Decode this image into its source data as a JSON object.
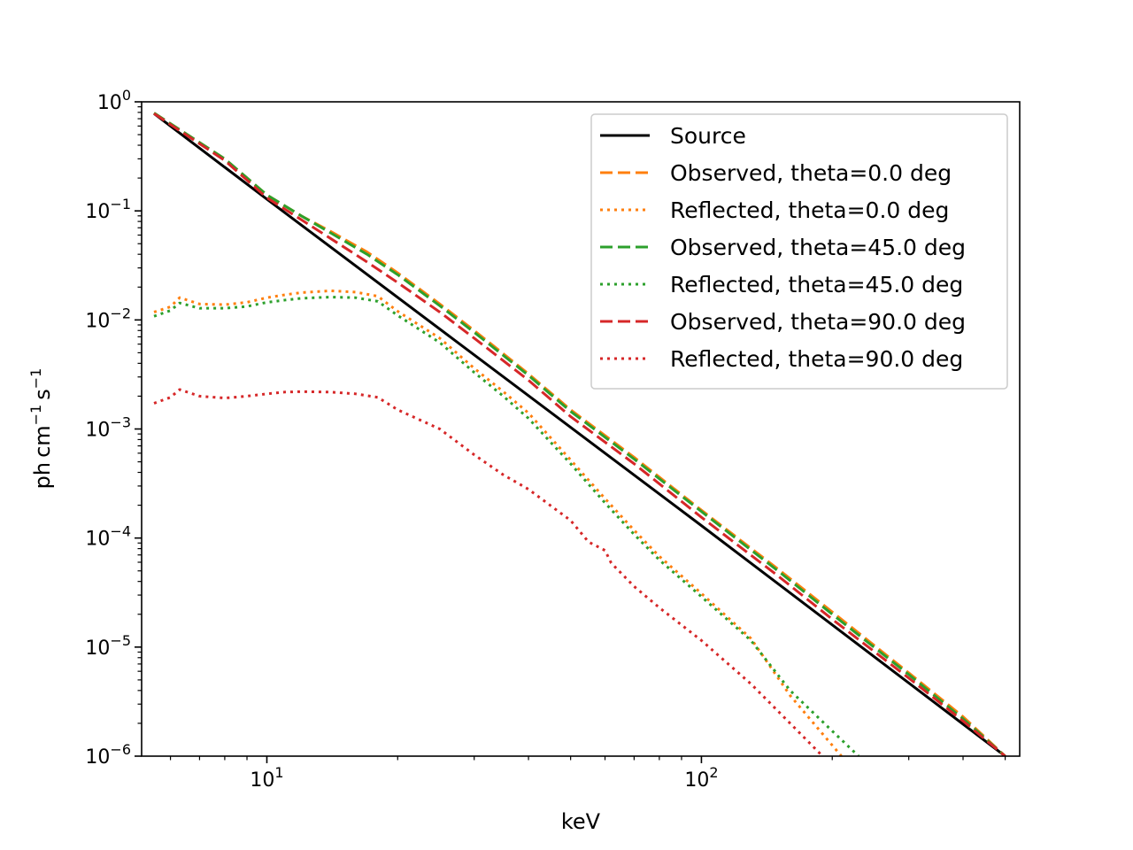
{
  "chart_data": {
    "type": "line",
    "title": "",
    "xlabel": "keV",
    "ylabel": "ph cm^-1 s^-1",
    "xscale": "log",
    "yscale": "log",
    "xlim": [
      5.15,
      540
    ],
    "ylim": [
      1e-06,
      1
    ],
    "x_ticks": [
      {
        "value": 10,
        "base": "10",
        "exp": "1"
      },
      {
        "value": 100,
        "base": "10",
        "exp": "2"
      }
    ],
    "y_ticks": [
      {
        "value": 1,
        "base": "10",
        "exp": "0"
      },
      {
        "value": 0.1,
        "base": "10",
        "exp": "−1"
      },
      {
        "value": 0.01,
        "base": "10",
        "exp": "−2"
      },
      {
        "value": 0.001,
        "base": "10",
        "exp": "−3"
      },
      {
        "value": 0.0001,
        "base": "10",
        "exp": "−4"
      },
      {
        "value": 1e-05,
        "base": "10",
        "exp": "−5"
      },
      {
        "value": 1e-06,
        "base": "10",
        "exp": "−6"
      }
    ],
    "legend_position": "top-right",
    "series": [
      {
        "name": "Source",
        "color": "#000000",
        "style": "solid",
        "points": [
          [
            5.5,
            0.78
          ],
          [
            10,
            0.128
          ],
          [
            100,
            0.00013
          ],
          [
            500,
            1e-06
          ]
        ]
      },
      {
        "name": "Observed, theta=0.0 deg",
        "color": "#ff7f0e",
        "style": "dashed",
        "points": [
          [
            5.5,
            0.79
          ],
          [
            8,
            0.3
          ],
          [
            10,
            0.14
          ],
          [
            12,
            0.09
          ],
          [
            14,
            0.065
          ],
          [
            17,
            0.042
          ],
          [
            20,
            0.027
          ],
          [
            25,
            0.014
          ],
          [
            30,
            0.008
          ],
          [
            40,
            0.0032
          ],
          [
            50,
            0.0015
          ],
          [
            70,
            0.00055
          ],
          [
            100,
            0.00018
          ],
          [
            150,
            5.2e-05
          ],
          [
            200,
            2.1e-05
          ],
          [
            300,
            5.8e-06
          ],
          [
            400,
            2.3e-06
          ],
          [
            500,
            1e-06
          ]
        ]
      },
      {
        "name": "Reflected, theta=0.0 deg",
        "color": "#ff7f0e",
        "style": "dotted",
        "points": [
          [
            5.5,
            0.0118
          ],
          [
            6,
            0.0132
          ],
          [
            6.3,
            0.016
          ],
          [
            7,
            0.014
          ],
          [
            8,
            0.0138
          ],
          [
            9,
            0.0145
          ],
          [
            10,
            0.016
          ],
          [
            11,
            0.017
          ],
          [
            12,
            0.0178
          ],
          [
            14,
            0.0185
          ],
          [
            16,
            0.018
          ],
          [
            18,
            0.0165
          ],
          [
            20,
            0.012
          ],
          [
            25,
            0.0068
          ],
          [
            30,
            0.0036
          ],
          [
            35,
            0.0022
          ],
          [
            40,
            0.0014
          ],
          [
            50,
            0.00052
          ],
          [
            60,
            0.00023
          ],
          [
            70,
            0.000118
          ],
          [
            80,
            6.8e-05
          ],
          [
            100,
            3.1e-05
          ],
          [
            130,
            1.2e-05
          ],
          [
            160,
            3.6e-06
          ],
          [
            190,
            1.6e-06
          ],
          [
            210,
            1e-06
          ]
        ]
      },
      {
        "name": "Observed, theta=45.0 deg",
        "color": "#2ca02c",
        "style": "dashed",
        "points": [
          [
            5.5,
            0.79
          ],
          [
            8,
            0.3
          ],
          [
            10,
            0.14
          ],
          [
            12,
            0.09
          ],
          [
            14,
            0.063
          ],
          [
            17,
            0.04
          ],
          [
            20,
            0.026
          ],
          [
            25,
            0.0135
          ],
          [
            30,
            0.0077
          ],
          [
            40,
            0.0031
          ],
          [
            50,
            0.00145
          ],
          [
            70,
            0.00053
          ],
          [
            100,
            0.000175
          ],
          [
            150,
            5e-05
          ],
          [
            200,
            2e-05
          ],
          [
            300,
            5.6e-06
          ],
          [
            400,
            2.2e-06
          ],
          [
            500,
            1e-06
          ]
        ]
      },
      {
        "name": "Reflected, theta=45.0 deg",
        "color": "#2ca02c",
        "style": "dotted",
        "points": [
          [
            5.5,
            0.0108
          ],
          [
            6,
            0.0122
          ],
          [
            6.3,
            0.0143
          ],
          [
            7,
            0.0128
          ],
          [
            8,
            0.0128
          ],
          [
            9,
            0.0133
          ],
          [
            10,
            0.0145
          ],
          [
            11,
            0.0152
          ],
          [
            12,
            0.0158
          ],
          [
            14,
            0.0162
          ],
          [
            16,
            0.016
          ],
          [
            18,
            0.0148
          ],
          [
            20,
            0.011
          ],
          [
            25,
            0.0062
          ],
          [
            30,
            0.0033
          ],
          [
            35,
            0.002
          ],
          [
            40,
            0.00125
          ],
          [
            50,
            0.00048
          ],
          [
            60,
            0.00021
          ],
          [
            70,
            0.000108
          ],
          [
            80,
            6.3e-05
          ],
          [
            100,
            2.9e-05
          ],
          [
            130,
            1.15e-05
          ],
          [
            160,
            4e-06
          ],
          [
            200,
            1.7e-06
          ],
          [
            230,
            1e-06
          ]
        ]
      },
      {
        "name": "Observed, theta=90.0 deg",
        "color": "#d62728",
        "style": "dashed",
        "points": [
          [
            5.5,
            0.78
          ],
          [
            8,
            0.29
          ],
          [
            10,
            0.132
          ],
          [
            12,
            0.083
          ],
          [
            14,
            0.056
          ],
          [
            17,
            0.034
          ],
          [
            20,
            0.022
          ],
          [
            25,
            0.0118
          ],
          [
            30,
            0.0068
          ],
          [
            40,
            0.0028
          ],
          [
            50,
            0.0013
          ],
          [
            70,
            0.00048
          ],
          [
            100,
            0.000155
          ],
          [
            150,
            4.5e-05
          ],
          [
            200,
            1.8e-05
          ],
          [
            300,
            5.2e-06
          ],
          [
            400,
            2.1e-06
          ],
          [
            500,
            1e-06
          ]
        ]
      },
      {
        "name": "Reflected, theta=90.0 deg",
        "color": "#d62728",
        "style": "dotted",
        "points": [
          [
            5.5,
            0.00172
          ],
          [
            6,
            0.00195
          ],
          [
            6.3,
            0.0023
          ],
          [
            7,
            0.002
          ],
          [
            8,
            0.00192
          ],
          [
            9,
            0.002
          ],
          [
            10,
            0.0021
          ],
          [
            11,
            0.00218
          ],
          [
            12,
            0.0022
          ],
          [
            14,
            0.00218
          ],
          [
            16,
            0.0021
          ],
          [
            18,
            0.00195
          ],
          [
            20,
            0.0015
          ],
          [
            25,
            0.001
          ],
          [
            30,
            0.00058
          ],
          [
            35,
            0.00038
          ],
          [
            40,
            0.00028
          ],
          [
            50,
            0.000145
          ],
          [
            55,
            9.2e-05
          ],
          [
            60,
            7.7e-05
          ],
          [
            62,
            5.9e-05
          ],
          [
            70,
            3.6e-05
          ],
          [
            80,
            2.3e-05
          ],
          [
            100,
            1.15e-05
          ],
          [
            130,
            4.6e-06
          ],
          [
            160,
            2e-06
          ],
          [
            190,
            1e-06
          ]
        ]
      }
    ]
  }
}
